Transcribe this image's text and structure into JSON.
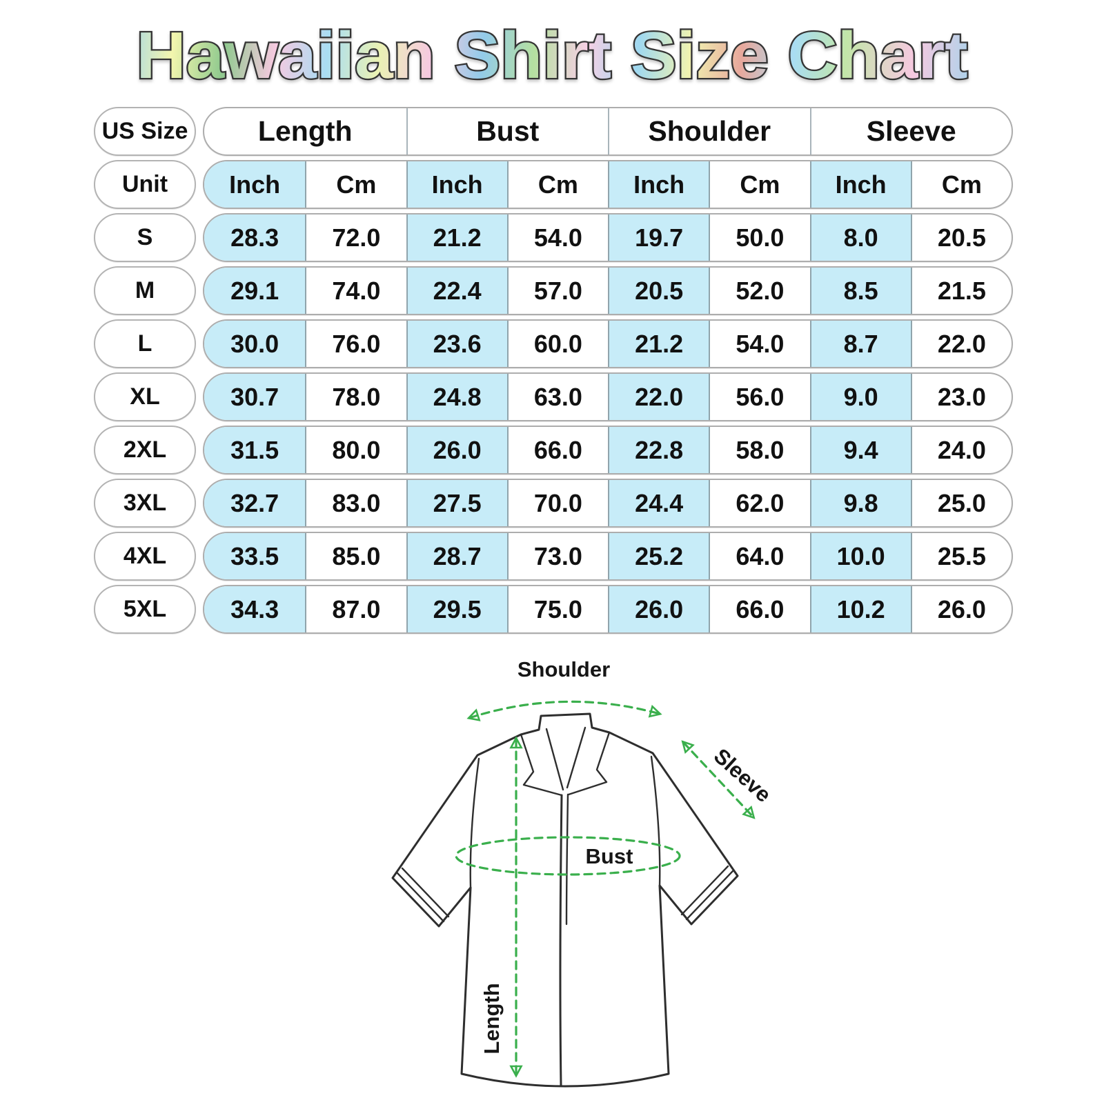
{
  "title": "Hawaiian Shirt Size Chart",
  "colors": {
    "cell_highlight": "#c7ecf8",
    "measure_green": "#3aaf4c",
    "outline_dark": "#2e2e2e"
  },
  "table": {
    "corner_label": "US Size",
    "unit_label": "Unit",
    "groups": [
      "Length",
      "Bust",
      "Shoulder",
      "Sleeve"
    ],
    "units": [
      "Inch",
      "Cm",
      "Inch",
      "Cm",
      "Inch",
      "Cm",
      "Inch",
      "Cm"
    ]
  },
  "chart_data": {
    "type": "table",
    "title": "Hawaiian Shirt Size Chart",
    "columns": [
      "US Size",
      "Length Inch",
      "Length Cm",
      "Bust Inch",
      "Bust Cm",
      "Shoulder Inch",
      "Shoulder Cm",
      "Sleeve Inch",
      "Sleeve Cm"
    ],
    "rows": [
      [
        "S",
        "28.3",
        "72.0",
        "21.2",
        "54.0",
        "19.7",
        "50.0",
        "8.0",
        "20.5"
      ],
      [
        "M",
        "29.1",
        "74.0",
        "22.4",
        "57.0",
        "20.5",
        "52.0",
        "8.5",
        "21.5"
      ],
      [
        "L",
        "30.0",
        "76.0",
        "23.6",
        "60.0",
        "21.2",
        "54.0",
        "8.7",
        "22.0"
      ],
      [
        "XL",
        "30.7",
        "78.0",
        "24.8",
        "63.0",
        "22.0",
        "56.0",
        "9.0",
        "23.0"
      ],
      [
        "2XL",
        "31.5",
        "80.0",
        "26.0",
        "66.0",
        "22.8",
        "58.0",
        "9.4",
        "24.0"
      ],
      [
        "3XL",
        "32.7",
        "83.0",
        "27.5",
        "70.0",
        "24.4",
        "62.0",
        "9.8",
        "25.0"
      ],
      [
        "4XL",
        "33.5",
        "85.0",
        "28.7",
        "73.0",
        "25.2",
        "64.0",
        "10.0",
        "25.5"
      ],
      [
        "5XL",
        "34.3",
        "87.0",
        "29.5",
        "75.0",
        "26.0",
        "66.0",
        "10.2",
        "26.0"
      ]
    ]
  },
  "diagram": {
    "labels": {
      "shoulder": "Shoulder",
      "sleeve": "Sleeve",
      "bust": "Bust",
      "length": "Length"
    }
  }
}
